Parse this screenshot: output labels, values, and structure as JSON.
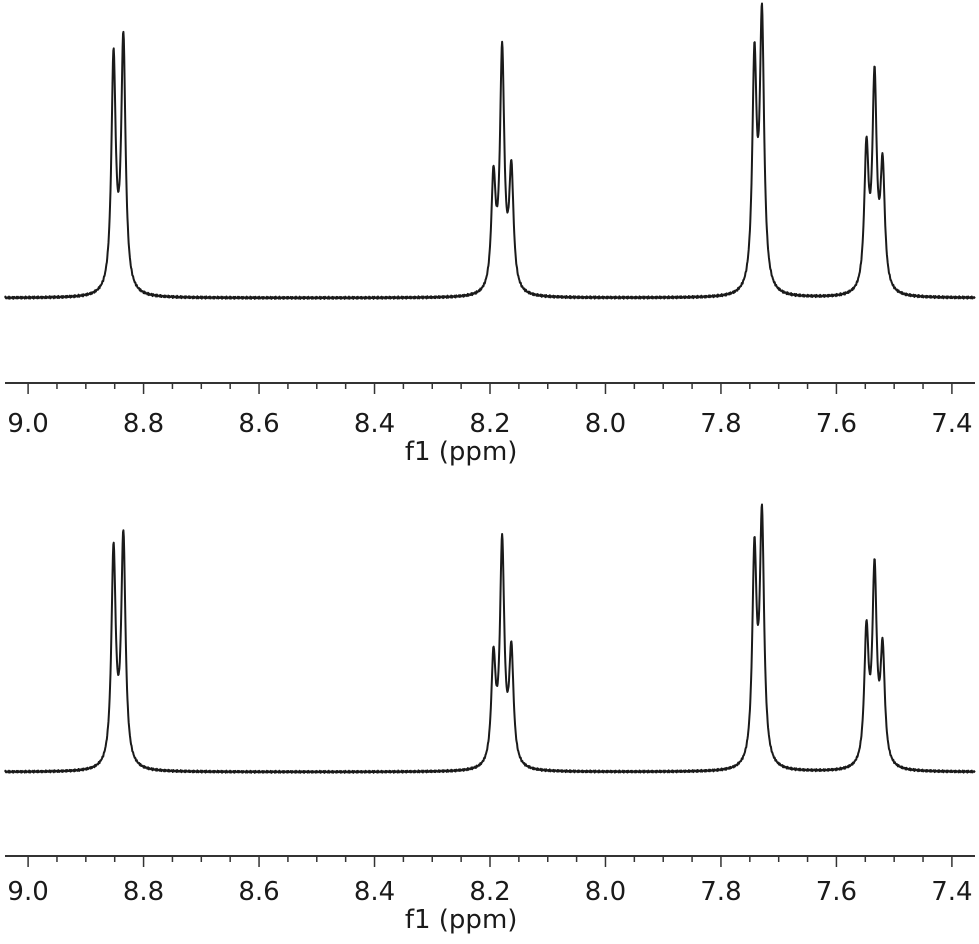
{
  "chart_data": [
    {
      "type": "line",
      "title": "",
      "xlabel": "f1 (ppm)",
      "ylabel": "",
      "xlim": [
        9.04,
        7.36
      ],
      "x_reversed": true,
      "ylim": [
        0,
        1.0
      ],
      "grid": false,
      "x_ticks": [
        9.0,
        8.8,
        8.6,
        8.4,
        8.2,
        8.0,
        7.8,
        7.6,
        7.4
      ],
      "x_tick_labels": [
        "9.0",
        "8.8",
        "8.6",
        "8.4",
        "8.2",
        "8.0",
        "7.8",
        "7.6",
        "7.4"
      ],
      "peaks": [
        {
          "x": 8.852,
          "y": 0.85
        },
        {
          "x": 8.835,
          "y": 0.91
        },
        {
          "x": 8.194,
          "y": 0.45
        },
        {
          "x": 8.179,
          "y": 0.87
        },
        {
          "x": 8.163,
          "y": 0.47
        },
        {
          "x": 7.742,
          "y": 0.87
        },
        {
          "x": 7.729,
          "y": 1.0
        },
        {
          "x": 7.548,
          "y": 0.55
        },
        {
          "x": 7.534,
          "y": 0.79
        },
        {
          "x": 7.52,
          "y": 0.49
        }
      ]
    },
    {
      "type": "line",
      "title": "",
      "xlabel": "f1 (ppm)",
      "ylabel": "",
      "xlim": [
        9.04,
        7.36
      ],
      "x_reversed": true,
      "ylim": [
        0,
        1.0
      ],
      "grid": false,
      "x_ticks": [
        9.0,
        8.8,
        8.6,
        8.4,
        8.2,
        8.0,
        7.8,
        7.6,
        7.4
      ],
      "x_tick_labels": [
        "9.0",
        "8.8",
        "8.6",
        "8.4",
        "8.2",
        "8.0",
        "7.8",
        "7.6",
        "7.4"
      ],
      "peaks": [
        {
          "x": 8.852,
          "y": 0.86
        },
        {
          "x": 8.835,
          "y": 0.91
        },
        {
          "x": 8.194,
          "y": 0.47
        },
        {
          "x": 8.179,
          "y": 0.89
        },
        {
          "x": 8.163,
          "y": 0.49
        },
        {
          "x": 7.742,
          "y": 0.88
        },
        {
          "x": 7.729,
          "y": 1.0
        },
        {
          "x": 7.548,
          "y": 0.57
        },
        {
          "x": 7.534,
          "y": 0.8
        },
        {
          "x": 7.52,
          "y": 0.5
        }
      ]
    }
  ]
}
